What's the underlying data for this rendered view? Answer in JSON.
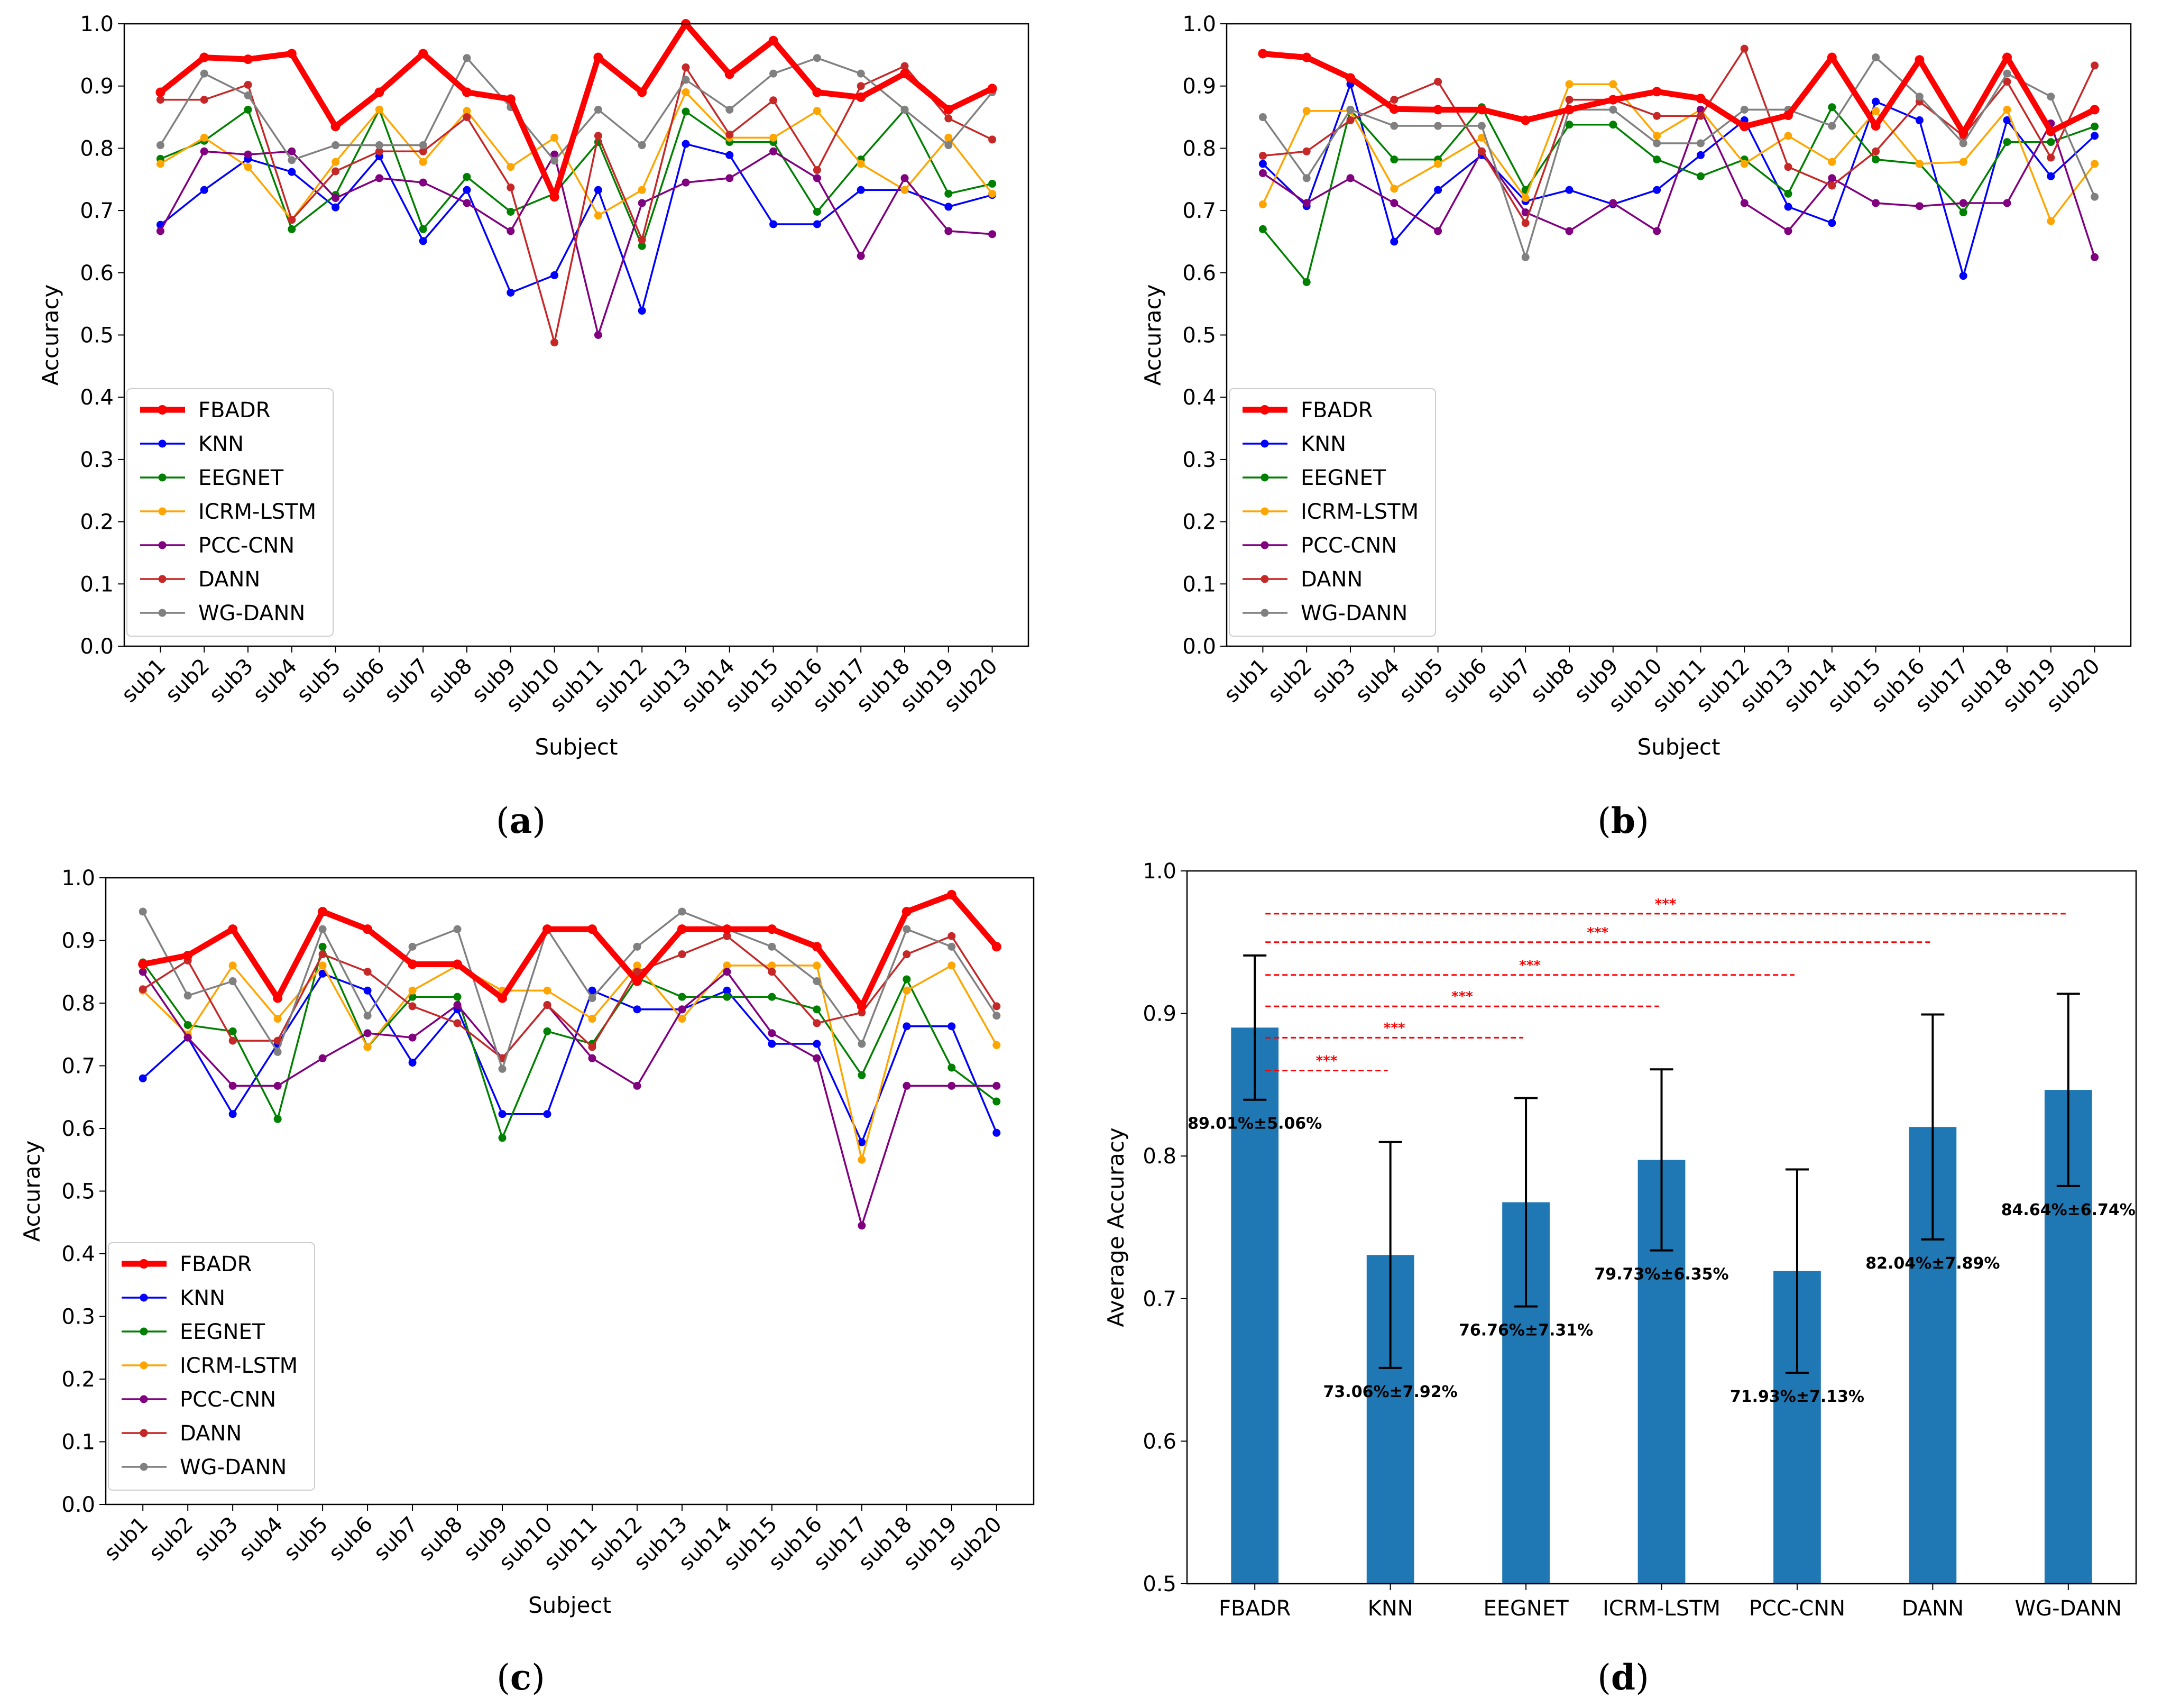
{
  "legend": [
    "FBADR",
    "KNN",
    "EEGNET",
    "ICRM-LSTM",
    "PCC-CNN",
    "DANN",
    "WG-DANN"
  ],
  "colors": {
    "FBADR": "#ff0000",
    "KNN": "#0000ff",
    "EEGNET": "#008000",
    "ICRM-LSTM": "#ffa500",
    "PCC-CNN": "#800080",
    "DANN": "#c62828",
    "WG-DANN": "#808080",
    "bar": "#1f77b4",
    "sig": "#ff0000"
  },
  "chart_data": [
    {
      "panel": "a",
      "panel_label": [
        "(",
        "a",
        ")"
      ],
      "type": "line",
      "xlabel": "Subject",
      "ylabel": "Accuracy",
      "ylim": [
        0,
        1
      ],
      "yticks": [
        "0.0",
        "0.1",
        "0.2",
        "0.3",
        "0.4",
        "0.5",
        "0.6",
        "0.7",
        "0.8",
        "0.9",
        "1.0"
      ],
      "categories": [
        "sub1",
        "sub2",
        "sub3",
        "sub4",
        "sub5",
        "sub6",
        "sub7",
        "sub8",
        "sub9",
        "sub10",
        "sub11",
        "sub12",
        "sub13",
        "sub14",
        "sub15",
        "sub16",
        "sub17",
        "sub18",
        "sub19",
        "sub20"
      ],
      "series": [
        {
          "name": "FBADR",
          "values": [
            0.89,
            0.946,
            0.943,
            0.952,
            0.835,
            0.89,
            0.952,
            0.89,
            0.879,
            0.722,
            0.946,
            0.89,
            1.0,
            0.919,
            0.973,
            0.89,
            0.882,
            0.92,
            0.862,
            0.896
          ]
        },
        {
          "name": "KNN",
          "values": [
            0.677,
            0.733,
            0.783,
            0.762,
            0.705,
            0.787,
            0.651,
            0.733,
            0.568,
            0.596,
            0.733,
            0.539,
            0.807,
            0.789,
            0.678,
            0.678,
            0.733,
            0.733,
            0.706,
            0.725
          ]
        },
        {
          "name": "EEGNET",
          "values": [
            0.783,
            0.812,
            0.862,
            0.67,
            0.725,
            0.862,
            0.67,
            0.754,
            0.698,
            0.727,
            0.81,
            0.643,
            0.859,
            0.81,
            0.81,
            0.698,
            0.782,
            0.862,
            0.727,
            0.743
          ]
        },
        {
          "name": "ICRM-LSTM",
          "values": [
            0.775,
            0.817,
            0.77,
            0.685,
            0.778,
            0.862,
            0.778,
            0.86,
            0.77,
            0.817,
            0.692,
            0.733,
            0.89,
            0.817,
            0.817,
            0.86,
            0.775,
            0.733,
            0.817,
            0.727
          ]
        },
        {
          "name": "PCC-CNN",
          "values": [
            0.667,
            0.795,
            0.79,
            0.795,
            0.72,
            0.752,
            0.745,
            0.712,
            0.667,
            0.79,
            0.5,
            0.712,
            0.745,
            0.752,
            0.795,
            0.752,
            0.627,
            0.752,
            0.667,
            0.662
          ]
        },
        {
          "name": "DANN",
          "values": [
            0.878,
            0.878,
            0.902,
            0.685,
            0.763,
            0.795,
            0.795,
            0.85,
            0.737,
            0.488,
            0.82,
            0.653,
            0.93,
            0.822,
            0.877,
            0.765,
            0.9,
            0.932,
            0.848,
            0.814
          ]
        },
        {
          "name": "WG-DANN",
          "values": [
            0.805,
            0.92,
            0.885,
            0.781,
            0.805,
            0.805,
            0.805,
            0.945,
            0.866,
            0.78,
            0.862,
            0.805,
            0.91,
            0.862,
            0.92,
            0.945,
            0.92,
            0.862,
            0.805,
            0.89
          ]
        }
      ]
    },
    {
      "panel": "b",
      "panel_label": [
        "(",
        "b",
        ")"
      ],
      "type": "line",
      "xlabel": "Subject",
      "ylabel": "Accuracy",
      "ylim": [
        0,
        1
      ],
      "yticks": [
        "0.0",
        "0.1",
        "0.2",
        "0.3",
        "0.4",
        "0.5",
        "0.6",
        "0.7",
        "0.8",
        "0.9",
        "1.0"
      ],
      "categories": [
        "sub1",
        "sub2",
        "sub3",
        "sub4",
        "sub5",
        "sub6",
        "sub7",
        "sub8",
        "sub9",
        "sub10",
        "sub11",
        "sub12",
        "sub13",
        "sub14",
        "sub15",
        "sub16",
        "sub17",
        "sub18",
        "sub19",
        "sub20"
      ],
      "series": [
        {
          "name": "FBADR",
          "values": [
            0.952,
            0.946,
            0.913,
            0.863,
            0.862,
            0.862,
            0.845,
            0.862,
            0.878,
            0.891,
            0.88,
            0.835,
            0.853,
            0.946,
            0.836,
            0.942,
            0.825,
            0.946,
            0.827,
            0.862
          ]
        },
        {
          "name": "KNN",
          "values": [
            0.775,
            0.707,
            0.903,
            0.65,
            0.733,
            0.789,
            0.715,
            0.733,
            0.71,
            0.733,
            0.789,
            0.845,
            0.706,
            0.68,
            0.875,
            0.845,
            0.595,
            0.845,
            0.755,
            0.82
          ]
        },
        {
          "name": "EEGNET",
          "values": [
            0.67,
            0.585,
            0.862,
            0.782,
            0.782,
            0.866,
            0.733,
            0.838,
            0.838,
            0.782,
            0.755,
            0.782,
            0.727,
            0.866,
            0.782,
            0.775,
            0.697,
            0.81,
            0.81,
            0.835
          ]
        },
        {
          "name": "ICRM-LSTM",
          "values": [
            0.71,
            0.86,
            0.86,
            0.735,
            0.775,
            0.817,
            0.72,
            0.903,
            0.903,
            0.82,
            0.862,
            0.775,
            0.82,
            0.778,
            0.86,
            0.775,
            0.778,
            0.862,
            0.683,
            0.775
          ]
        },
        {
          "name": "PCC-CNN",
          "values": [
            0.76,
            0.712,
            0.752,
            0.712,
            0.667,
            0.795,
            0.697,
            0.667,
            0.712,
            0.667,
            0.862,
            0.712,
            0.667,
            0.752,
            0.712,
            0.707,
            0.712,
            0.712,
            0.84,
            0.625
          ]
        },
        {
          "name": "DANN",
          "values": [
            0.788,
            0.795,
            0.845,
            0.878,
            0.907,
            0.795,
            0.68,
            0.878,
            0.878,
            0.852,
            0.852,
            0.96,
            0.77,
            0.74,
            0.795,
            0.875,
            0.82,
            0.907,
            0.785,
            0.933
          ]
        },
        {
          "name": "WG-DANN",
          "values": [
            0.85,
            0.752,
            0.862,
            0.836,
            0.836,
            0.836,
            0.625,
            0.862,
            0.862,
            0.808,
            0.808,
            0.862,
            0.862,
            0.836,
            0.946,
            0.883,
            0.808,
            0.92,
            0.883,
            0.722
          ]
        }
      ]
    },
    {
      "panel": "c",
      "panel_label": [
        "(",
        "c",
        ")"
      ],
      "type": "line",
      "xlabel": "Subject",
      "ylabel": "Accuracy",
      "ylim": [
        0,
        1
      ],
      "yticks": [
        "0.0",
        "0.1",
        "0.2",
        "0.3",
        "0.4",
        "0.5",
        "0.6",
        "0.7",
        "0.8",
        "0.9",
        "1.0"
      ],
      "categories": [
        "sub1",
        "sub2",
        "sub3",
        "sub4",
        "sub5",
        "sub6",
        "sub7",
        "sub8",
        "sub9",
        "sub10",
        "sub11",
        "sub12",
        "sub13",
        "sub14",
        "sub15",
        "sub16",
        "sub17",
        "sub18",
        "sub19",
        "sub20"
      ],
      "series": [
        {
          "name": "FBADR",
          "values": [
            0.862,
            0.876,
            0.918,
            0.808,
            0.946,
            0.918,
            0.862,
            0.862,
            0.808,
            0.918,
            0.918,
            0.835,
            0.918,
            0.918,
            0.918,
            0.89,
            0.795,
            0.946,
            0.973,
            0.89
          ]
        },
        {
          "name": "KNN",
          "values": [
            0.68,
            0.745,
            0.623,
            0.735,
            0.847,
            0.82,
            0.705,
            0.79,
            0.623,
            0.623,
            0.82,
            0.79,
            0.79,
            0.82,
            0.735,
            0.735,
            0.578,
            0.763,
            0.763,
            0.593
          ]
        },
        {
          "name": "EEGNET",
          "values": [
            0.865,
            0.765,
            0.755,
            0.615,
            0.89,
            0.73,
            0.81,
            0.81,
            0.585,
            0.755,
            0.735,
            0.84,
            0.81,
            0.81,
            0.81,
            0.79,
            0.685,
            0.838,
            0.697,
            0.643
          ]
        },
        {
          "name": "ICRM-LSTM",
          "values": [
            0.82,
            0.75,
            0.86,
            0.775,
            0.86,
            0.73,
            0.82,
            0.86,
            0.82,
            0.82,
            0.775,
            0.86,
            0.775,
            0.86,
            0.86,
            0.86,
            0.55,
            0.82,
            0.86,
            0.733
          ]
        },
        {
          "name": "PCC-CNN",
          "values": [
            0.85,
            0.745,
            0.668,
            0.668,
            0.712,
            0.752,
            0.745,
            0.797,
            0.712,
            0.797,
            0.712,
            0.668,
            0.79,
            0.85,
            0.752,
            0.712,
            0.445,
            0.668,
            0.668,
            0.668
          ]
        },
        {
          "name": "DANN",
          "values": [
            0.822,
            0.868,
            0.74,
            0.74,
            0.878,
            0.85,
            0.795,
            0.768,
            0.712,
            0.797,
            0.73,
            0.85,
            0.878,
            0.907,
            0.85,
            0.768,
            0.785,
            0.878,
            0.907,
            0.795
          ]
        },
        {
          "name": "WG-DANN",
          "values": [
            0.946,
            0.812,
            0.835,
            0.722,
            0.918,
            0.78,
            0.89,
            0.918,
            0.695,
            0.918,
            0.808,
            0.89,
            0.946,
            0.918,
            0.89,
            0.835,
            0.735,
            0.918,
            0.89,
            0.78
          ]
        }
      ]
    },
    {
      "panel": "d",
      "panel_label": [
        "(",
        "d",
        ")"
      ],
      "type": "bar",
      "ylabel": "Average Accuracy",
      "ylim": [
        0.5,
        1.0
      ],
      "yticks": [
        "0.5",
        "0.6",
        "0.7",
        "0.8",
        "0.9",
        "1.0"
      ],
      "categories": [
        "FBADR",
        "KNN",
        "EEGNET",
        "ICRM-LSTM",
        "PCC-CNN",
        "DANN",
        "WG-DANN"
      ],
      "values": [
        0.8901,
        0.7306,
        0.7676,
        0.7973,
        0.7193,
        0.8204,
        0.8464
      ],
      "errors": [
        0.0506,
        0.0792,
        0.0731,
        0.0635,
        0.0713,
        0.0789,
        0.0674
      ],
      "value_labels": [
        "89.01%±5.06%",
        "73.06%±7.92%",
        "76.76%±7.31%",
        "79.73%±6.35%",
        "71.93%±7.13%",
        "82.04%±7.89%",
        "84.64%±6.74%"
      ],
      "significance": [
        {
          "to": "KNN",
          "y": 0.86,
          "label": "***"
        },
        {
          "to": "EEGNET",
          "y": 0.883,
          "label": "***"
        },
        {
          "to": "ICRM-LSTM",
          "y": 0.905,
          "label": "***"
        },
        {
          "to": "PCC-CNN",
          "y": 0.927,
          "label": "***"
        },
        {
          "to": "DANN",
          "y": 0.95,
          "label": "***"
        },
        {
          "to": "WG-DANN",
          "y": 0.97,
          "label": "***"
        }
      ]
    }
  ]
}
